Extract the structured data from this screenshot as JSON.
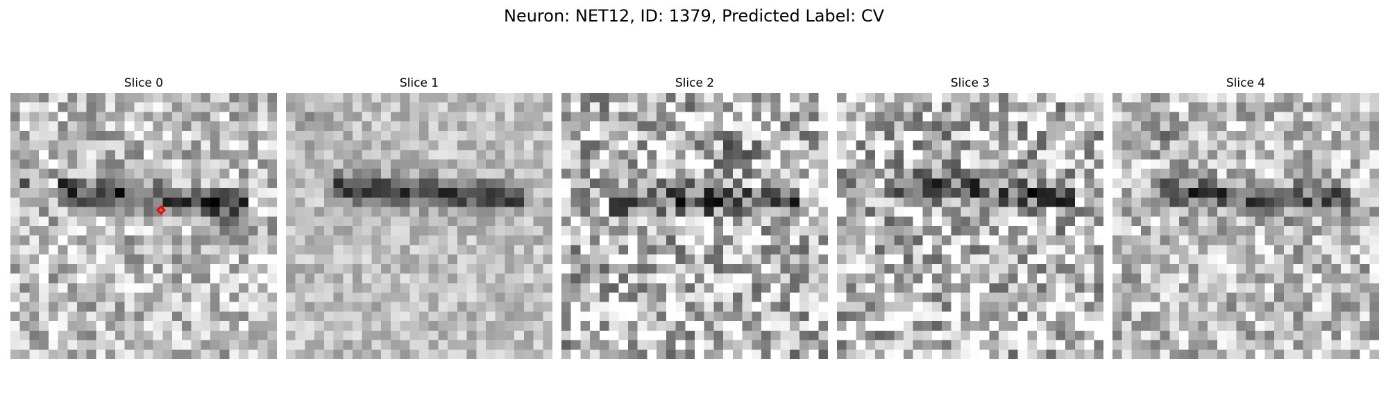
{
  "figure": {
    "title": "Neuron: NET12, ID: 1379, Predicted Label: CV"
  },
  "slices": [
    {
      "label": "Slice 0"
    },
    {
      "label": "Slice 1"
    },
    {
      "label": "Slice 2"
    },
    {
      "label": "Slice 3"
    },
    {
      "label": "Slice 4"
    }
  ],
  "marker": {
    "slice_index": 0,
    "color": "#ff0000",
    "shape": "diamond"
  },
  "colormap": "gray"
}
